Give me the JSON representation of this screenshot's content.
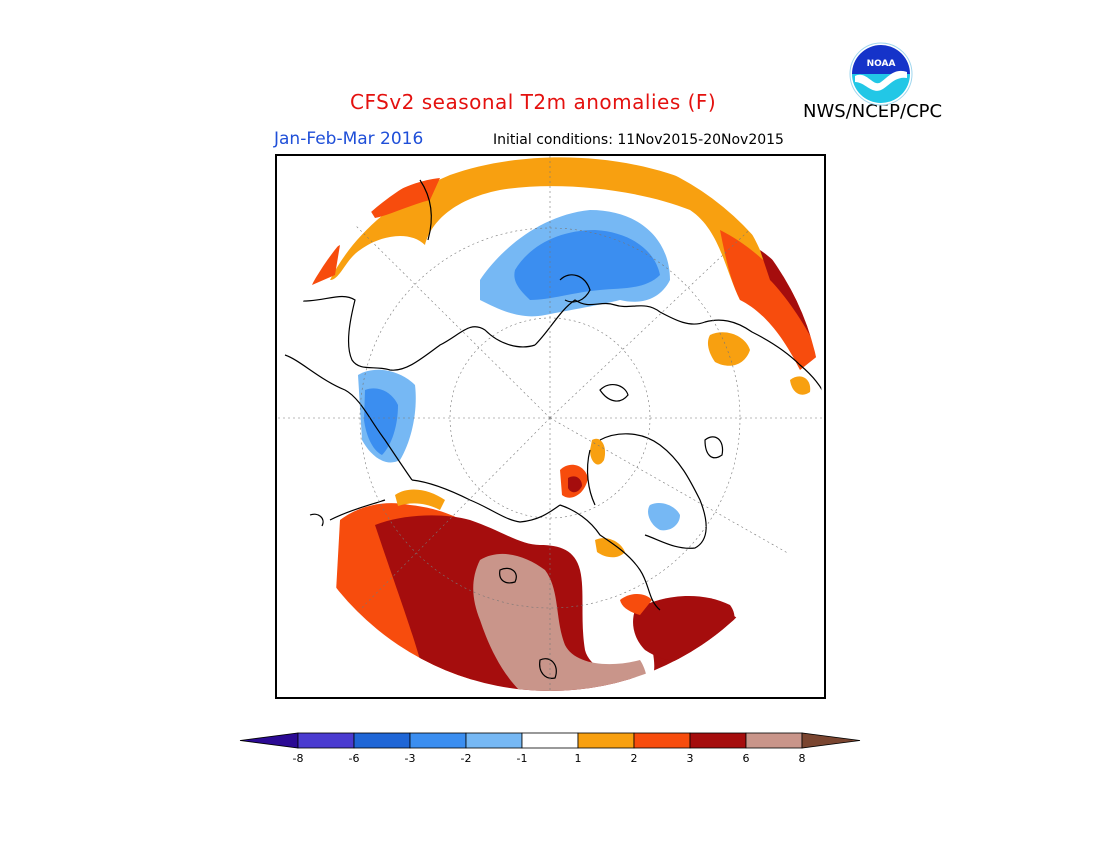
{
  "header": {
    "title": "CFSv2 seasonal T2m anomalies (F)",
    "period": "Jan-Feb-Mar 2016",
    "initial_conditions": "Initial conditions: 11Nov2015-20Nov2015",
    "agency": "NWS/NCEP/CPC",
    "logo_text": "NOAA"
  },
  "legend": {
    "colors": [
      "#2b0a94",
      "#4a3bd0",
      "#1f66d6",
      "#3b8ef0",
      "#76b8f4",
      "#ffffff",
      "#f8a010",
      "#f74c0d",
      "#a50d0d",
      "#c9958a",
      "#7a4530"
    ],
    "tick_labels": [
      "-8",
      "-6",
      "-3",
      "-2",
      "-1",
      "1",
      "2",
      "3",
      "6",
      "8"
    ]
  },
  "map": {
    "projection": "north polar stereographic",
    "colors": {
      "light_blue": "#76b8f4",
      "blue": "#3b8ef0",
      "orange": "#f8a010",
      "red_orange": "#f74c0d",
      "dark_red": "#a50d0d",
      "tan": "#c9958a"
    }
  }
}
